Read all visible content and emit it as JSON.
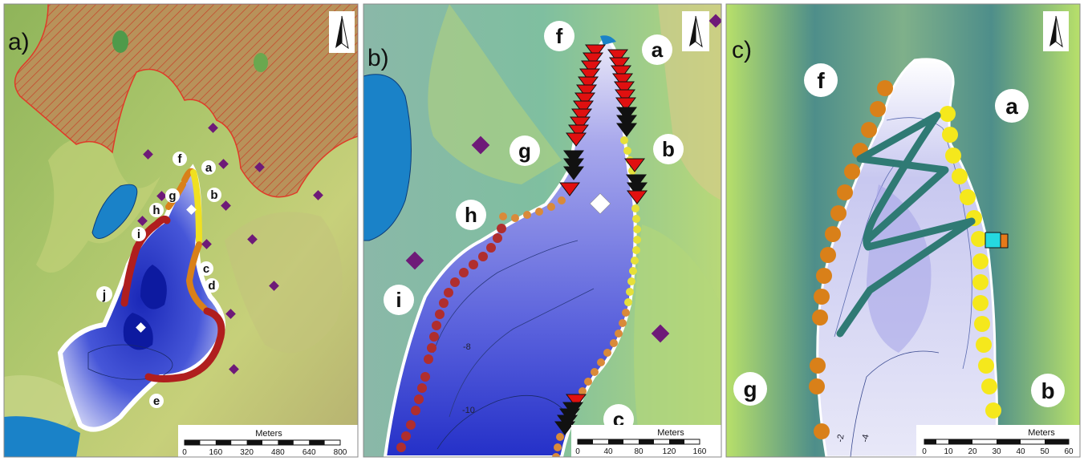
{
  "panels": [
    {
      "id": "a",
      "letter": "a)",
      "site_labels": [
        "a",
        "b",
        "c",
        "d",
        "e",
        "f",
        "g",
        "h",
        "i",
        "j"
      ],
      "scale": {
        "title": "Meters",
        "ticks": [
          "0",
          "160",
          "320",
          "480",
          "640",
          "800"
        ]
      },
      "north_arrow": "north-arrow-icon"
    },
    {
      "id": "b",
      "letter": "b)",
      "site_labels": [
        "a",
        "b",
        "c",
        "f",
        "g",
        "h",
        "i"
      ],
      "contour_labels": [
        "-8",
        "-10"
      ],
      "scale": {
        "title": "Meters",
        "ticks": [
          "0",
          "40",
          "80",
          "120",
          "160"
        ]
      },
      "north_arrow": "north-arrow-icon"
    },
    {
      "id": "c",
      "letter": "c)",
      "site_labels": [
        "a",
        "b",
        "f",
        "g"
      ],
      "contour_labels": [
        "-2",
        "-4"
      ],
      "scale": {
        "title": "Meters",
        "ticks": [
          "0",
          "10",
          "20",
          "30",
          "40",
          "50",
          "60"
        ]
      },
      "north_arrow": "north-arrow-icon"
    }
  ],
  "colors": {
    "shore_red": "#b01e1e",
    "shore_orange": "#d98019",
    "shore_yellow": "#f0e020",
    "marker_red": "#e01010",
    "marker_black": "#111111",
    "station_purple": "#6e1a78",
    "track_teal": "#2f7a74",
    "water_blue": "#1a82c8",
    "deep_blue": "#3440c8"
  }
}
